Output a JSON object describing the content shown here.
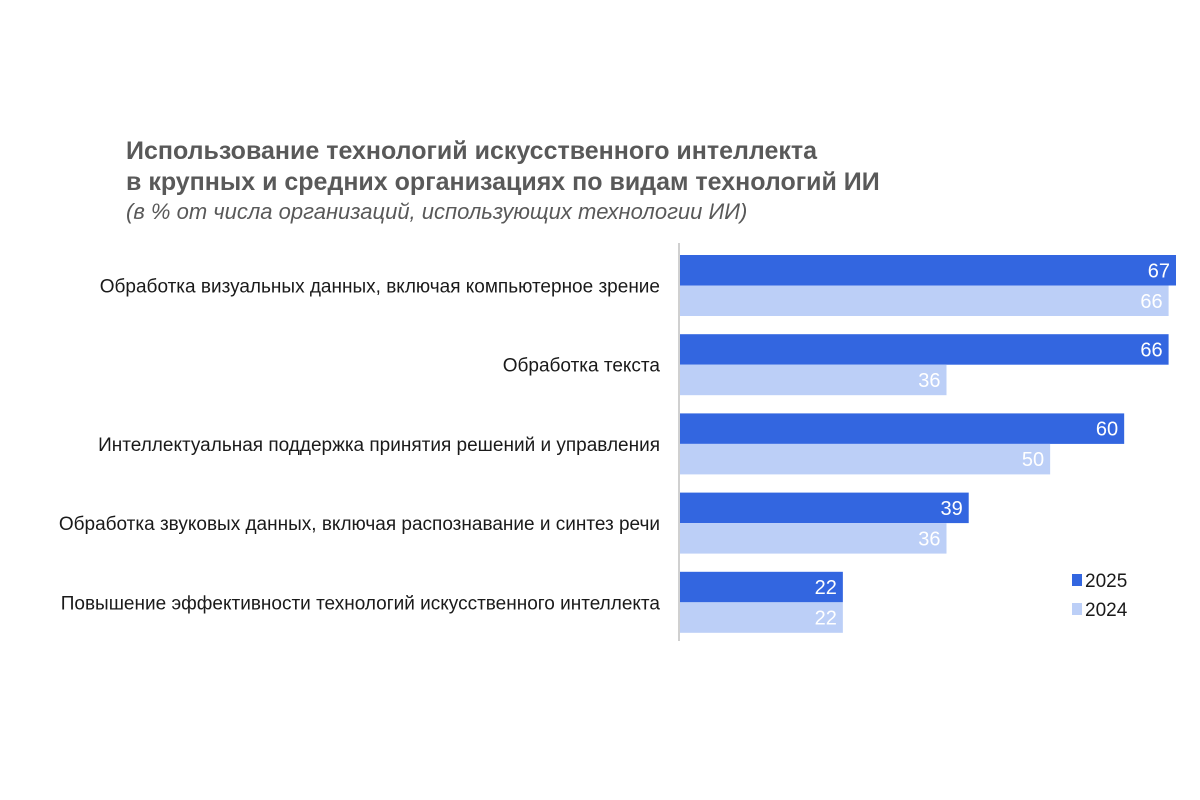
{
  "chart_data": {
    "type": "bar",
    "orientation": "horizontal",
    "title": "Использование технологий искусственного интеллекта",
    "title_line2": "в крупных и средних организациях по видам технологий ИИ",
    "subtitle": "(в % от числа организаций, использующих технологии ИИ)",
    "categories": [
      "Обработка визуальных данных, включая компьютерное зрение",
      "Обработка текста",
      "Интеллектуальная поддержка принятия решений и управления",
      "Обработка звуковых данных, включая распознавание и синтез речи",
      "Повышение эффективности технологий искусственного интеллекта"
    ],
    "series": [
      {
        "name": "2025",
        "color": "#3366e0",
        "values": [
          67,
          66,
          60,
          39,
          22
        ]
      },
      {
        "name": "2024",
        "color": "#bccff7",
        "values": [
          66,
          36,
          50,
          36,
          22
        ]
      }
    ],
    "xlim": [
      0,
      67
    ],
    "grid": false,
    "legend": "bottom-right"
  }
}
